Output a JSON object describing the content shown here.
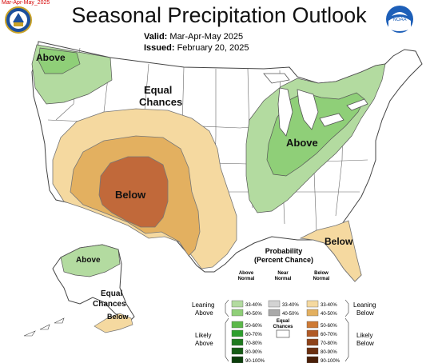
{
  "corner_tag": "Mar-Apr-May_2025",
  "title": "Seasonal Precipitation Outlook",
  "valid_label": "Valid:",
  "valid_value": "Mar-Apr-May 2025",
  "issued_label": "Issued:",
  "issued_value": "February 20, 2025",
  "logos": {
    "left": "noaa-nws-seal-icon",
    "right": "noaa-logo-icon",
    "right_text": "NOAA"
  },
  "map_labels": {
    "above_northwest": "Above",
    "equal_chances_line1": "Equal",
    "equal_chances_line2": "Chances",
    "below_southwest": "Below",
    "above_east": "Above",
    "below_southeast": "Below",
    "above_alaska": "Above",
    "alaska_ec_line1": "Equal",
    "alaska_ec_line2": "Chances",
    "below_alaska": "Below"
  },
  "legend": {
    "title_line1": "Probability",
    "title_line2": "(Percent Chance)",
    "col_above": [
      "Above",
      "Normal"
    ],
    "col_near": [
      "Near",
      "Normal"
    ],
    "col_below": [
      "Below",
      "Normal"
    ],
    "above_bins": [
      "33-40%",
      "40-50%",
      "50-60%",
      "60-70%",
      "70-80%",
      "80-90%",
      "90-100%"
    ],
    "near_bins": [
      "33-40%",
      "40-50%"
    ],
    "below_bins": [
      "33-40%",
      "40-50%",
      "50-60%",
      "60-70%",
      "70-80%",
      "80-90%",
      "90-100%"
    ],
    "leaning_above": [
      "Leaning",
      "Above"
    ],
    "likely_above": [
      "Likely",
      "Above"
    ],
    "leaning_below": [
      "Leaning",
      "Below"
    ],
    "likely_below": [
      "Likely",
      "Below"
    ],
    "ec_label": [
      "Equal",
      "Chances"
    ]
  },
  "colors": {
    "above": [
      "#b3dba0",
      "#8fcf78",
      "#5cb84a",
      "#2e9e2e",
      "#1f7a1f",
      "#155c15",
      "#0b3d0b"
    ],
    "near": [
      "#d3d3d3",
      "#a9a9a9"
    ],
    "below": [
      "#f5d9a0",
      "#e3b060",
      "#cd7a35",
      "#b05a26",
      "#8e4219",
      "#6b2f10",
      "#4a1f08"
    ]
  }
}
